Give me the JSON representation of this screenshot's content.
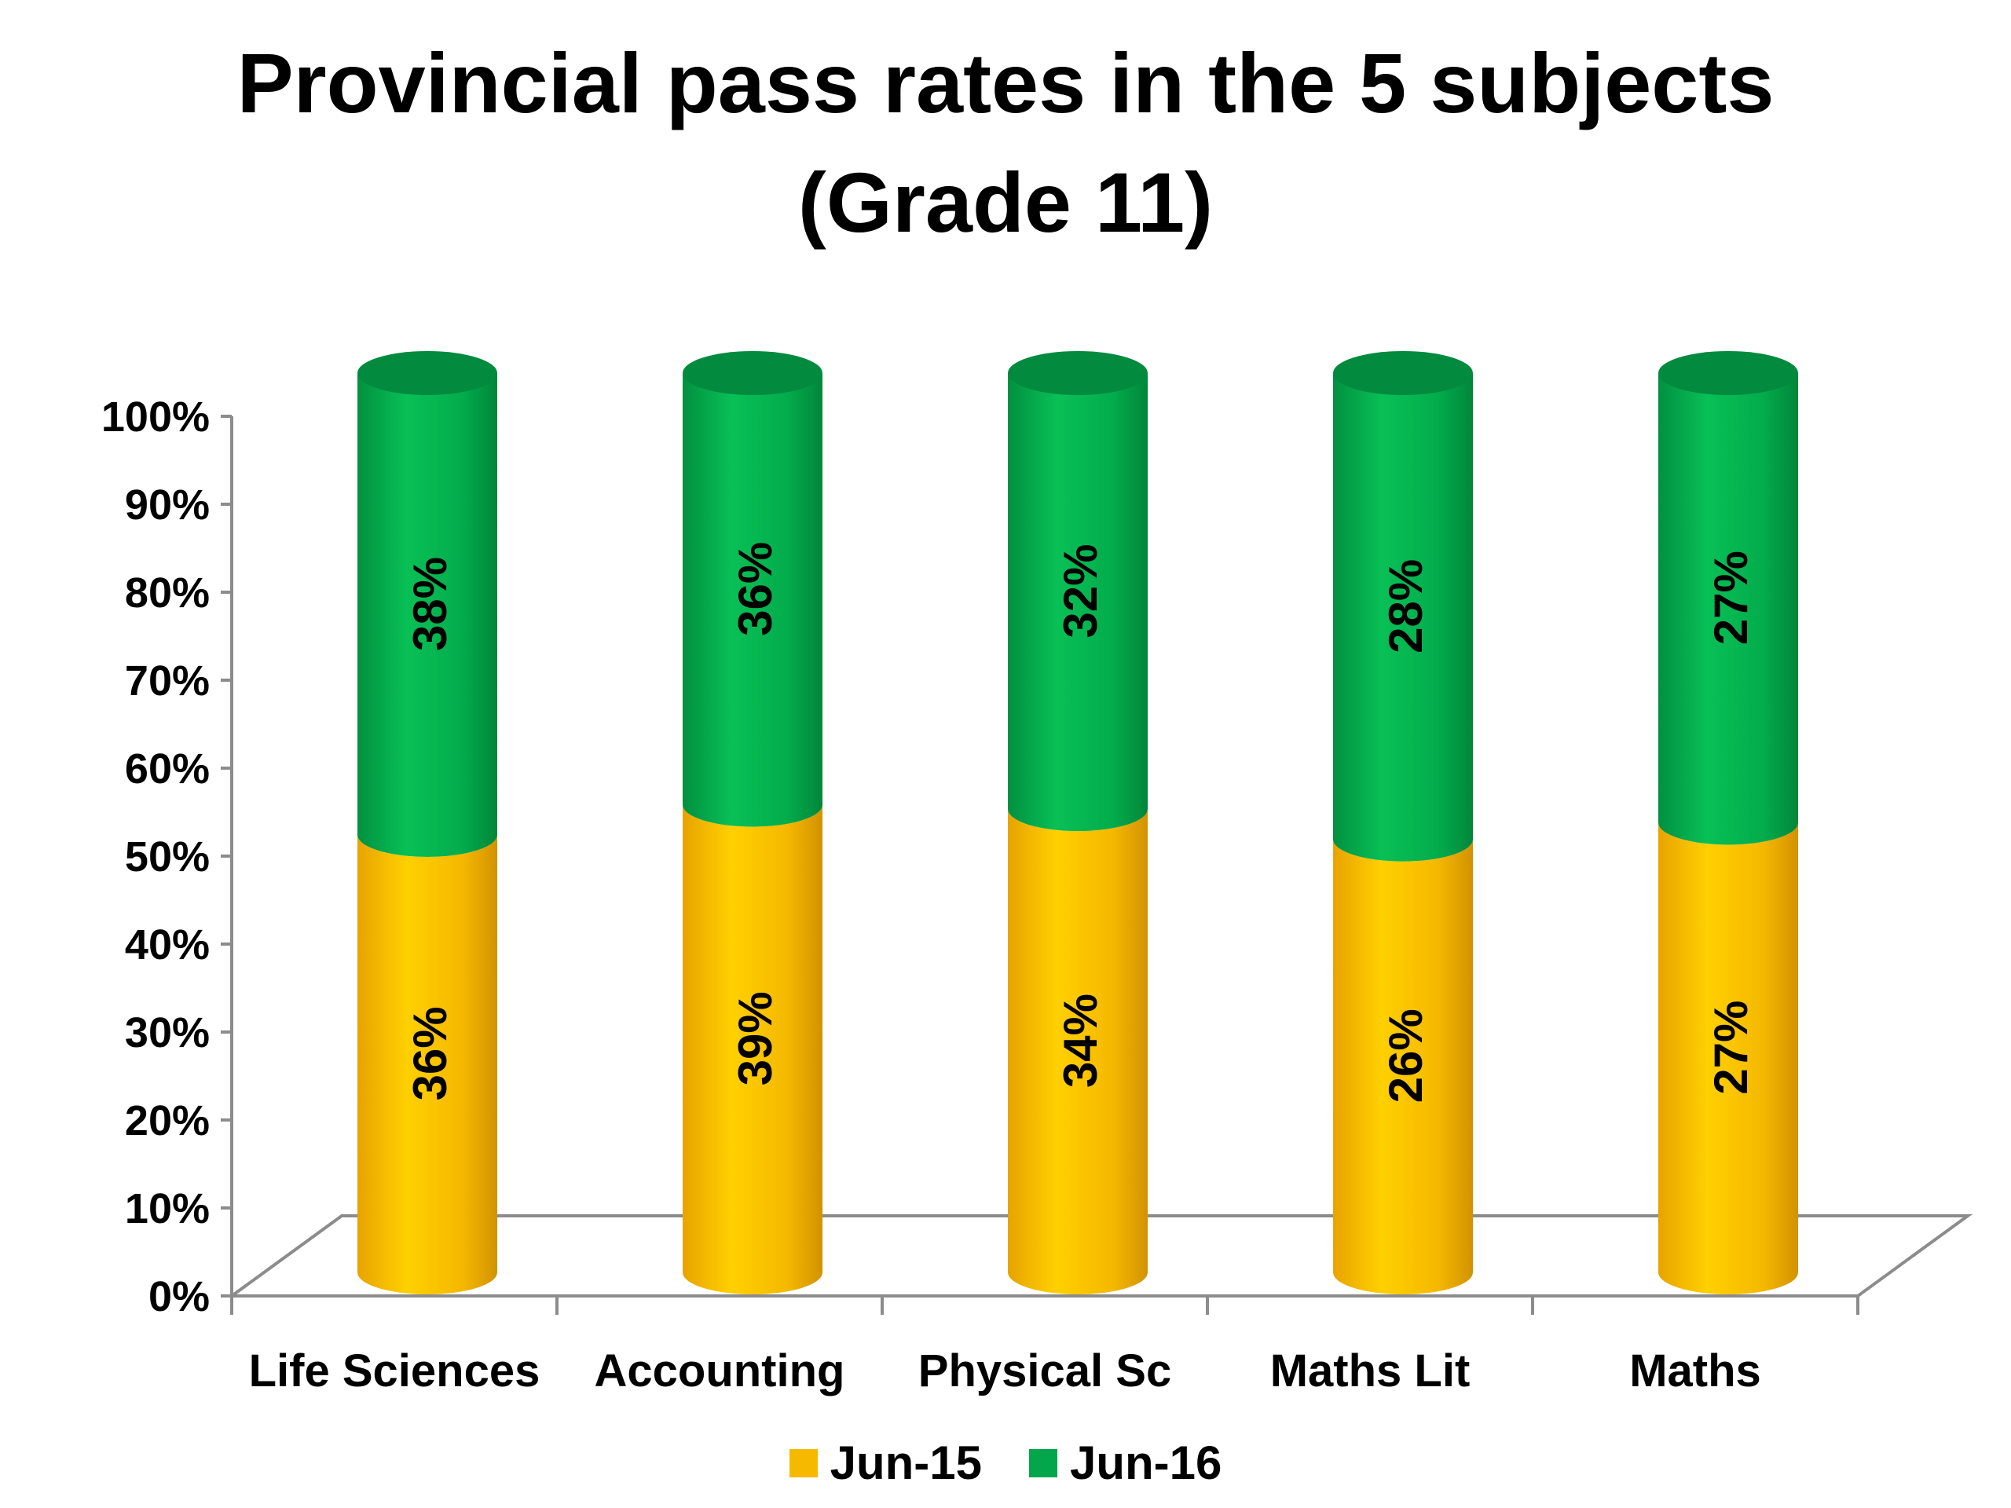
{
  "chart_data": {
    "type": "bar",
    "stacked": true,
    "title_lines": [
      "Provincial pass rates in the 5 subjects",
      "(Grade 11)"
    ],
    "categories": [
      "Life Sciences",
      "Accounting",
      "Physical Sc",
      "Maths Lit",
      "Maths"
    ],
    "series": [
      {
        "name": "Jun-15",
        "color": "#F7B900",
        "values": [
          36,
          39,
          34,
          26,
          27
        ],
        "labels": [
          "36%",
          "39%",
          "34%",
          "26%",
          "27%"
        ]
      },
      {
        "name": "Jun-16",
        "color": "#03A64A",
        "values": [
          38,
          36,
          32,
          28,
          27
        ],
        "labels": [
          "38%",
          "36%",
          "32%",
          "28%",
          "27%"
        ]
      }
    ],
    "normalized_to_100_percent": true,
    "ylim": [
      0,
      100
    ],
    "yticks": [
      "0%",
      "10%",
      "20%",
      "30%",
      "40%",
      "50%",
      "60%",
      "70%",
      "80%",
      "90%",
      "100%"
    ],
    "grid": false,
    "legend_position": "bottom",
    "bar_shape": "3d-cylinder"
  }
}
